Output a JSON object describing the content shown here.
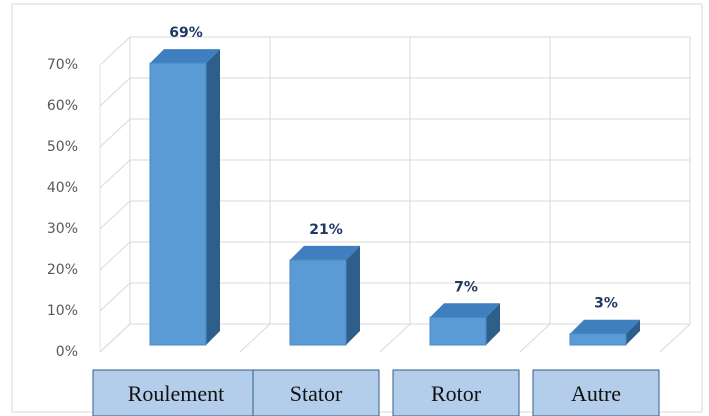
{
  "chart_data": {
    "type": "bar3d",
    "categories": [
      "Roulement",
      "Stator",
      "Rotor",
      "Autre"
    ],
    "values": [
      69,
      21,
      7,
      3
    ],
    "value_labels": [
      "69%",
      "21%",
      "7%",
      "3%"
    ],
    "color": "#5b9bd5",
    "ylim": [
      0,
      70
    ],
    "yticks": [
      {
        "value": 0,
        "label": "0%"
      },
      {
        "value": 10,
        "label": "10%"
      },
      {
        "value": 20,
        "label": "20%"
      },
      {
        "value": 30,
        "label": "30%"
      },
      {
        "value": 40,
        "label": "40%"
      },
      {
        "value": 50,
        "label": "50%"
      },
      {
        "value": 60,
        "label": "60%"
      },
      {
        "value": 70,
        "label": "70%"
      }
    ],
    "grid": true
  }
}
